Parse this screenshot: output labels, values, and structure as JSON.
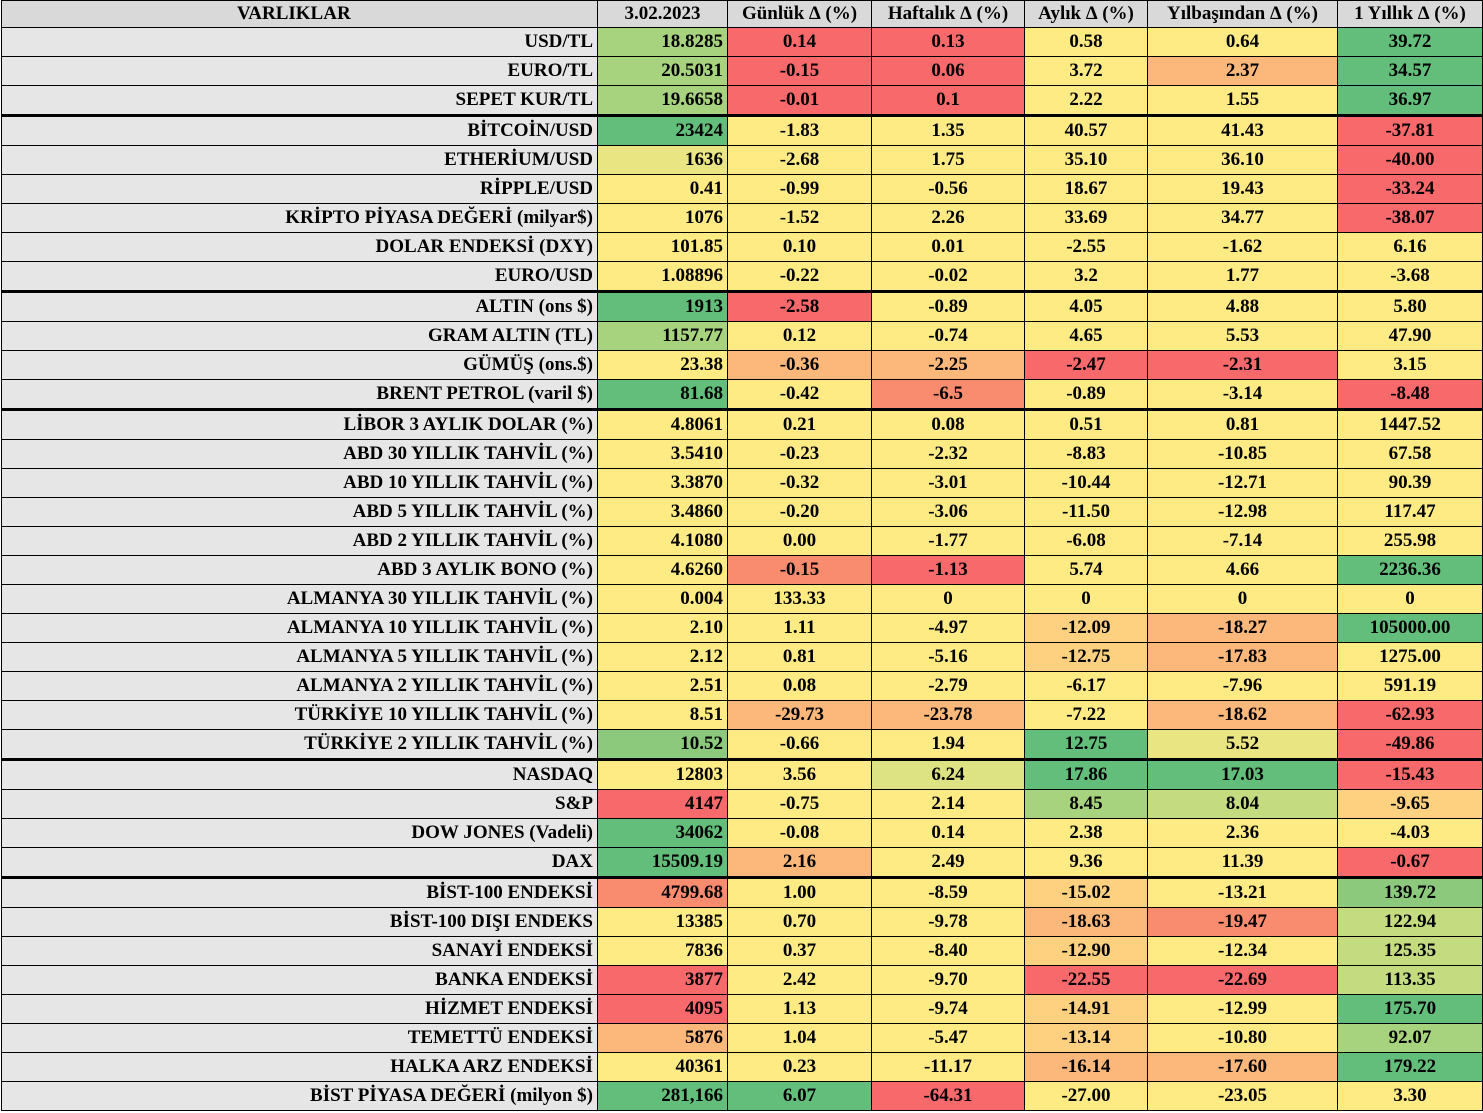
{
  "headers": [
    "VARLIKLAR",
    "3.02.2023",
    "Günlük ∆ (%)",
    "Haftalık ∆ (%)",
    "Aylık ∆ (%)",
    "Yılbaşından ∆ (%)",
    "1 Yıllık ∆ (%)"
  ],
  "colors": {
    "header": "#d9d9d9",
    "name_cell": "#e7e6e6",
    "scale_red": "#f8696b",
    "scale_yellow": "#ffeb84",
    "scale_green": "#63be7b"
  },
  "rows": [
    {
      "name": "USD/TL",
      "value": "18.8285",
      "vc": "#a8d37e",
      "cells": [
        {
          "t": "0.14",
          "c": "#f8696b"
        },
        {
          "t": "0.13",
          "c": "#f8696b"
        },
        {
          "t": "0.58",
          "c": "#ffeb84"
        },
        {
          "t": "0.64",
          "c": "#ffeb84"
        },
        {
          "t": "39.72",
          "c": "#63be7b"
        }
      ]
    },
    {
      "name": "EURO/TL",
      "value": "20.5031",
      "vc": "#a8d37e",
      "cells": [
        {
          "t": "-0.15",
          "c": "#f8696b"
        },
        {
          "t": "0.06",
          "c": "#f8696b"
        },
        {
          "t": "3.72",
          "c": "#ffeb84"
        },
        {
          "t": "2.37",
          "c": "#fcb77a"
        },
        {
          "t": "34.57",
          "c": "#63be7b"
        }
      ]
    },
    {
      "name": "SEPET KUR/TL",
      "value": "19.6658",
      "vc": "#a8d37e",
      "cells": [
        {
          "t": "-0.01",
          "c": "#f8696b"
        },
        {
          "t": "0.1",
          "c": "#f8696b"
        },
        {
          "t": "2.22",
          "c": "#ffeb84"
        },
        {
          "t": "1.55",
          "c": "#ffeb84"
        },
        {
          "t": "36.97",
          "c": "#63be7b"
        }
      ]
    },
    {
      "name": "BİTCOİN/USD",
      "value": "23424",
      "vc": "#63be7b",
      "sep": true,
      "cells": [
        {
          "t": "-1.83",
          "c": "#ffeb84"
        },
        {
          "t": "1.35",
          "c": "#ffeb84"
        },
        {
          "t": "40.57",
          "c": "#ffeb84"
        },
        {
          "t": "41.43",
          "c": "#ffeb84"
        },
        {
          "t": "-37.81",
          "c": "#f8696b"
        }
      ]
    },
    {
      "name": "ETHERİUM/USD",
      "value": "1636",
      "vc": "#e9e583",
      "cells": [
        {
          "t": "-2.68",
          "c": "#ffeb84"
        },
        {
          "t": "1.75",
          "c": "#ffeb84"
        },
        {
          "t": "35.10",
          "c": "#ffeb84"
        },
        {
          "t": "36.10",
          "c": "#ffeb84"
        },
        {
          "t": "-40.00",
          "c": "#f8696b"
        }
      ]
    },
    {
      "name": "RİPPLE/USD",
      "value": "0.41",
      "vc": "#ffeb84",
      "cells": [
        {
          "t": "-0.99",
          "c": "#ffeb84"
        },
        {
          "t": "-0.56",
          "c": "#ffeb84"
        },
        {
          "t": "18.67",
          "c": "#ffeb84"
        },
        {
          "t": "19.43",
          "c": "#ffeb84"
        },
        {
          "t": "-33.24",
          "c": "#f8696b"
        }
      ]
    },
    {
      "name": "KRİPTO PİYASA DEĞERİ (milyar$)",
      "value": "1076",
      "vc": "#ffeb84",
      "cells": [
        {
          "t": "-1.52",
          "c": "#ffeb84"
        },
        {
          "t": "2.26",
          "c": "#ffeb84"
        },
        {
          "t": "33.69",
          "c": "#ffeb84"
        },
        {
          "t": "34.77",
          "c": "#ffeb84"
        },
        {
          "t": "-38.07",
          "c": "#f8696b"
        }
      ]
    },
    {
      "name": "DOLAR ENDEKSİ (DXY)",
      "value": "101.85",
      "vc": "#ffeb84",
      "cells": [
        {
          "t": "0.10",
          "c": "#ffeb84"
        },
        {
          "t": "0.01",
          "c": "#ffeb84"
        },
        {
          "t": "-2.55",
          "c": "#ffeb84"
        },
        {
          "t": "-1.62",
          "c": "#ffeb84"
        },
        {
          "t": "6.16",
          "c": "#ffeb84"
        }
      ]
    },
    {
      "name": "EURO/USD",
      "value": "1.08896",
      "vc": "#ffeb84",
      "cells": [
        {
          "t": "-0.22",
          "c": "#ffeb84"
        },
        {
          "t": "-0.02",
          "c": "#ffeb84"
        },
        {
          "t": "3.2",
          "c": "#ffeb84"
        },
        {
          "t": "1.77",
          "c": "#ffeb84"
        },
        {
          "t": "-3.68",
          "c": "#ffeb84"
        }
      ]
    },
    {
      "name": "ALTIN (ons $)",
      "value": "1913",
      "vc": "#63be7b",
      "sep": true,
      "cells": [
        {
          "t": "-2.58",
          "c": "#f8696b"
        },
        {
          "t": "-0.89",
          "c": "#ffeb84"
        },
        {
          "t": "4.05",
          "c": "#ffeb84"
        },
        {
          "t": "4.88",
          "c": "#ffeb84"
        },
        {
          "t": "5.80",
          "c": "#ffeb84"
        }
      ]
    },
    {
      "name": "GRAM ALTIN (TL)",
      "value": "1157.77",
      "vc": "#a8d37e",
      "cells": [
        {
          "t": "0.12",
          "c": "#ffeb84"
        },
        {
          "t": "-0.74",
          "c": "#ffeb84"
        },
        {
          "t": "4.65",
          "c": "#ffeb84"
        },
        {
          "t": "5.53",
          "c": "#ffeb84"
        },
        {
          "t": "47.90",
          "c": "#ffeb84"
        }
      ]
    },
    {
      "name": "GÜMÜŞ (ons.$)",
      "value": "23.38",
      "vc": "#ffeb84",
      "cells": [
        {
          "t": "-0.36",
          "c": "#fcb77a"
        },
        {
          "t": "-2.25",
          "c": "#fcb77a"
        },
        {
          "t": "-2.47",
          "c": "#f8696b"
        },
        {
          "t": "-2.31",
          "c": "#f8696b"
        },
        {
          "t": "3.15",
          "c": "#ffeb84"
        }
      ]
    },
    {
      "name": "BRENT PETROL (varil $)",
      "value": "81.68",
      "vc": "#63be7b",
      "cells": [
        {
          "t": "-0.42",
          "c": "#ffeb84"
        },
        {
          "t": "-6.5",
          "c": "#f98b6f"
        },
        {
          "t": "-0.89",
          "c": "#ffeb84"
        },
        {
          "t": "-3.14",
          "c": "#ffeb84"
        },
        {
          "t": "-8.48",
          "c": "#f8696b"
        }
      ]
    },
    {
      "name": "LİBOR 3 AYLIK DOLAR (%)",
      "value": "4.8061",
      "vc": "#ffeb84",
      "sep": true,
      "cells": [
        {
          "t": "0.21",
          "c": "#ffeb84"
        },
        {
          "t": "0.08",
          "c": "#ffeb84"
        },
        {
          "t": "0.51",
          "c": "#ffeb84"
        },
        {
          "t": "0.81",
          "c": "#ffeb84"
        },
        {
          "t": "1447.52",
          "c": "#ffeb84"
        }
      ]
    },
    {
      "name": "ABD 30 YILLIK TAHVİL (%)",
      "value": "3.5410",
      "vc": "#ffeb84",
      "cells": [
        {
          "t": "-0.23",
          "c": "#ffeb84"
        },
        {
          "t": "-2.32",
          "c": "#ffeb84"
        },
        {
          "t": "-8.83",
          "c": "#ffeb84"
        },
        {
          "t": "-10.85",
          "c": "#ffeb84"
        },
        {
          "t": "67.58",
          "c": "#ffeb84"
        }
      ]
    },
    {
      "name": "ABD 10 YILLIK TAHVİL (%)",
      "value": "3.3870",
      "vc": "#ffeb84",
      "cells": [
        {
          "t": "-0.32",
          "c": "#ffeb84"
        },
        {
          "t": "-3.01",
          "c": "#ffeb84"
        },
        {
          "t": "-10.44",
          "c": "#ffeb84"
        },
        {
          "t": "-12.71",
          "c": "#ffeb84"
        },
        {
          "t": "90.39",
          "c": "#ffeb84"
        }
      ]
    },
    {
      "name": "ABD 5 YILLIK TAHVİL (%)",
      "value": "3.4860",
      "vc": "#ffeb84",
      "cells": [
        {
          "t": "-0.20",
          "c": "#ffeb84"
        },
        {
          "t": "-3.06",
          "c": "#ffeb84"
        },
        {
          "t": "-11.50",
          "c": "#ffeb84"
        },
        {
          "t": "-12.98",
          "c": "#ffeb84"
        },
        {
          "t": "117.47",
          "c": "#ffeb84"
        }
      ]
    },
    {
      "name": "ABD 2 YILLIK TAHVİL (%)",
      "value": "4.1080",
      "vc": "#ffeb84",
      "cells": [
        {
          "t": "0.00",
          "c": "#ffeb84"
        },
        {
          "t": "-1.77",
          "c": "#ffeb84"
        },
        {
          "t": "-6.08",
          "c": "#ffeb84"
        },
        {
          "t": "-7.14",
          "c": "#ffeb84"
        },
        {
          "t": "255.98",
          "c": "#ffeb84"
        }
      ]
    },
    {
      "name": "ABD 3 AYLIK BONO (%)",
      "value": "4.6260",
      "vc": "#ffeb84",
      "cells": [
        {
          "t": "-0.15",
          "c": "#f98b6f"
        },
        {
          "t": "-1.13",
          "c": "#f8696b"
        },
        {
          "t": "5.74",
          "c": "#ffeb84"
        },
        {
          "t": "4.66",
          "c": "#ffeb84"
        },
        {
          "t": "2236.36",
          "c": "#63be7b"
        }
      ]
    },
    {
      "name": "ALMANYA 30 YILLIK TAHVİL (%)",
      "value": "0.004",
      "vc": "#ffeb84",
      "cells": [
        {
          "t": "133.33",
          "c": "#ffeb84"
        },
        {
          "t": "0",
          "c": "#ffeb84"
        },
        {
          "t": "0",
          "c": "#ffeb84"
        },
        {
          "t": "0",
          "c": "#ffeb84"
        },
        {
          "t": "0",
          "c": "#ffeb84"
        }
      ]
    },
    {
      "name": "ALMANYA 10 YILLIK TAHVİL (%)",
      "value": "2.10",
      "vc": "#ffeb84",
      "cells": [
        {
          "t": "1.11",
          "c": "#ffeb84"
        },
        {
          "t": "-4.97",
          "c": "#ffeb84"
        },
        {
          "t": "-12.09",
          "c": "#fdd17f"
        },
        {
          "t": "-18.27",
          "c": "#fcb77a"
        },
        {
          "t": "105000.00",
          "c": "#63be7b"
        }
      ]
    },
    {
      "name": "ALMANYA 5 YILLIK TAHVİL (%)",
      "value": "2.12",
      "vc": "#ffeb84",
      "cells": [
        {
          "t": "0.81",
          "c": "#ffeb84"
        },
        {
          "t": "-5.16",
          "c": "#ffeb84"
        },
        {
          "t": "-12.75",
          "c": "#fdd17f"
        },
        {
          "t": "-17.83",
          "c": "#fcb77a"
        },
        {
          "t": "1275.00",
          "c": "#ffeb84"
        }
      ]
    },
    {
      "name": "ALMANYA 2 YILLIK TAHVİL (%)",
      "value": "2.51",
      "vc": "#ffeb84",
      "cells": [
        {
          "t": "0.08",
          "c": "#ffeb84"
        },
        {
          "t": "-2.79",
          "c": "#ffeb84"
        },
        {
          "t": "-6.17",
          "c": "#ffeb84"
        },
        {
          "t": "-7.96",
          "c": "#ffeb84"
        },
        {
          "t": "591.19",
          "c": "#ffeb84"
        }
      ]
    },
    {
      "name": "TÜRKİYE 10 YILLIK TAHVİL (%)",
      "value": "8.51",
      "vc": "#ffeb84",
      "cells": [
        {
          "t": "-29.73",
          "c": "#fcb77a"
        },
        {
          "t": "-23.78",
          "c": "#fcb77a"
        },
        {
          "t": "-7.22",
          "c": "#ffeb84"
        },
        {
          "t": "-18.62",
          "c": "#fcb77a"
        },
        {
          "t": "-62.93",
          "c": "#f8696b"
        }
      ]
    },
    {
      "name": "TÜRKİYE 2 YILLIK TAHVİL (%)",
      "value": "10.52",
      "vc": "#8dc97d",
      "cells": [
        {
          "t": "-0.66",
          "c": "#ffeb84"
        },
        {
          "t": "1.94",
          "c": "#ffeb84"
        },
        {
          "t": "12.75",
          "c": "#63be7b"
        },
        {
          "t": "5.52",
          "c": "#e9e583"
        },
        {
          "t": "-49.86",
          "c": "#f8696b"
        }
      ]
    },
    {
      "name": "NASDAQ",
      "value": "12803",
      "vc": "#ffeb84",
      "sep": true,
      "cells": [
        {
          "t": "3.56",
          "c": "#ffeb84"
        },
        {
          "t": "6.24",
          "c": "#dde283"
        },
        {
          "t": "17.86",
          "c": "#63be7b"
        },
        {
          "t": "17.03",
          "c": "#63be7b"
        },
        {
          "t": "-15.43",
          "c": "#f8696b"
        }
      ]
    },
    {
      "name": "S&P",
      "value": "4147",
      "vc": "#f8696b",
      "cells": [
        {
          "t": "-0.75",
          "c": "#ffeb84"
        },
        {
          "t": "2.14",
          "c": "#ffeb84"
        },
        {
          "t": "8.45",
          "c": "#a8d37e"
        },
        {
          "t": "8.04",
          "c": "#c4db80"
        },
        {
          "t": "-9.65",
          "c": "#fdd17f"
        }
      ]
    },
    {
      "name": "DOW JONES (Vadeli)",
      "value": "34062",
      "vc": "#63be7b",
      "cells": [
        {
          "t": "-0.08",
          "c": "#ffeb84"
        },
        {
          "t": "0.14",
          "c": "#ffeb84"
        },
        {
          "t": "2.38",
          "c": "#ffeb84"
        },
        {
          "t": "2.36",
          "c": "#ffeb84"
        },
        {
          "t": "-4.03",
          "c": "#ffeb84"
        }
      ]
    },
    {
      "name": "DAX",
      "value": "15509.19",
      "vc": "#63be7b",
      "cells": [
        {
          "t": "2.16",
          "c": "#fcb77a"
        },
        {
          "t": "2.49",
          "c": "#ffeb84"
        },
        {
          "t": "9.36",
          "c": "#ffeb84"
        },
        {
          "t": "11.39",
          "c": "#ffeb84"
        },
        {
          "t": "-0.67",
          "c": "#f8696b"
        }
      ]
    },
    {
      "name": "BİST-100 ENDEKSİ",
      "value": "4799.68",
      "vc": "#f98b6f",
      "sep": true,
      "cells": [
        {
          "t": "1.00",
          "c": "#ffeb84"
        },
        {
          "t": "-8.59",
          "c": "#ffeb84"
        },
        {
          "t": "-15.02",
          "c": "#fdd17f"
        },
        {
          "t": "-13.21",
          "c": "#ffeb84"
        },
        {
          "t": "139.72",
          "c": "#8dc97d"
        }
      ]
    },
    {
      "name": "BİST-100 DIŞI ENDEKS",
      "value": "13385",
      "vc": "#ffeb84",
      "cells": [
        {
          "t": "0.70",
          "c": "#ffeb84"
        },
        {
          "t": "-9.78",
          "c": "#ffeb84"
        },
        {
          "t": "-18.63",
          "c": "#fcb77a"
        },
        {
          "t": "-19.47",
          "c": "#f98b6f"
        },
        {
          "t": "122.94",
          "c": "#c4db80"
        }
      ]
    },
    {
      "name": "SANAYİ ENDEKSİ",
      "value": "7836",
      "vc": "#ffeb84",
      "cells": [
        {
          "t": "0.37",
          "c": "#ffeb84"
        },
        {
          "t": "-8.40",
          "c": "#ffeb84"
        },
        {
          "t": "-12.90",
          "c": "#fdd17f"
        },
        {
          "t": "-12.34",
          "c": "#ffeb84"
        },
        {
          "t": "125.35",
          "c": "#c4db80"
        }
      ]
    },
    {
      "name": "BANKA ENDEKSİ",
      "value": "3877",
      "vc": "#f8696b",
      "cells": [
        {
          "t": "2.42",
          "c": "#ffeb84"
        },
        {
          "t": "-9.70",
          "c": "#ffeb84"
        },
        {
          "t": "-22.55",
          "c": "#f8696b"
        },
        {
          "t": "-22.69",
          "c": "#f8696b"
        },
        {
          "t": "113.35",
          "c": "#c4db80"
        }
      ]
    },
    {
      "name": "HİZMET ENDEKSİ",
      "value": "4095",
      "vc": "#f8696b",
      "cells": [
        {
          "t": "1.13",
          "c": "#ffeb84"
        },
        {
          "t": "-9.74",
          "c": "#ffeb84"
        },
        {
          "t": "-14.91",
          "c": "#fdd17f"
        },
        {
          "t": "-12.99",
          "c": "#ffeb84"
        },
        {
          "t": "175.70",
          "c": "#63be7b"
        }
      ]
    },
    {
      "name": "TEMETTÜ ENDEKSİ",
      "value": "5876",
      "vc": "#fcb77a",
      "cells": [
        {
          "t": "1.04",
          "c": "#ffeb84"
        },
        {
          "t": "-5.47",
          "c": "#ffeb84"
        },
        {
          "t": "-13.14",
          "c": "#fdd17f"
        },
        {
          "t": "-10.80",
          "c": "#ffeb84"
        },
        {
          "t": "92.07",
          "c": "#a8d37e"
        }
      ]
    },
    {
      "name": "HALKA ARZ ENDEKSİ",
      "value": "40361",
      "vc": "#ffeb84",
      "cells": [
        {
          "t": "0.23",
          "c": "#ffeb84"
        },
        {
          "t": "-11.17",
          "c": "#ffeb84"
        },
        {
          "t": "-16.14",
          "c": "#fcb77a"
        },
        {
          "t": "-17.60",
          "c": "#fcb77a"
        },
        {
          "t": "179.22",
          "c": "#63be7b"
        }
      ]
    },
    {
      "name": "BİST PİYASA DEĞERİ (milyon $)",
      "value": "281,166",
      "vc": "#63be7b",
      "cells": [
        {
          "t": "6.07",
          "c": "#63be7b"
        },
        {
          "t": "-64.31",
          "c": "#f8696b"
        },
        {
          "t": "-27.00",
          "c": "#ffeb84"
        },
        {
          "t": "-23.05",
          "c": "#ffeb84"
        },
        {
          "t": "3.30",
          "c": "#ffeb84"
        }
      ]
    }
  ]
}
